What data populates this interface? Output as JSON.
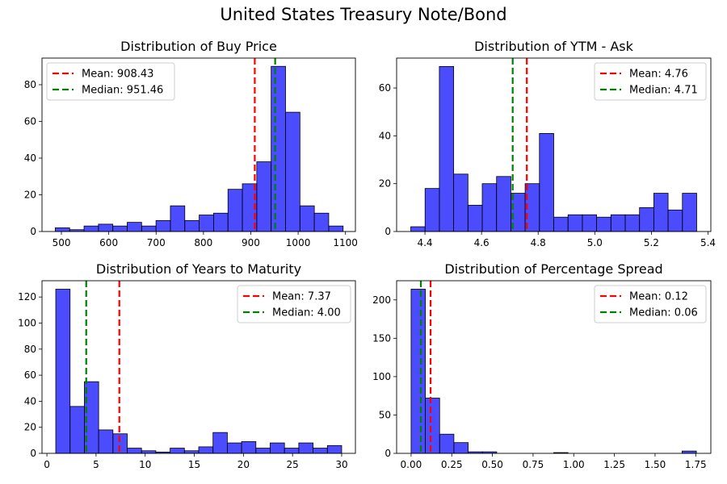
{
  "figure": {
    "title": "United States Treasury Note/Bond"
  },
  "chart_data": [
    {
      "type": "bar",
      "title": "Distribution of Buy Price",
      "xlabel": "",
      "ylabel": "",
      "xlim": [
        459,
        1121
      ],
      "ylim": [
        0,
        94.5
      ],
      "xticks": [
        500,
        600,
        700,
        800,
        900,
        1000,
        1100
      ],
      "yticks": [
        0,
        20,
        40,
        60,
        80
      ],
      "bins": {
        "start": 487,
        "width": 30.4
      },
      "values": [
        2,
        1,
        3,
        4,
        3,
        5,
        3,
        6,
        14,
        6,
        9,
        10,
        23,
        26,
        38,
        90,
        65,
        14,
        10,
        3
      ],
      "bar_color": "#0000ff",
      "bar_alpha": 0.7,
      "edge_color": "#000000",
      "mean": {
        "value": 908.43,
        "label": "Mean: 908.43",
        "color": "#ff0000"
      },
      "median": {
        "value": 951.46,
        "label": "Median: 951.46",
        "color": "#008000"
      },
      "legend": "top-left"
    },
    {
      "type": "bar",
      "title": "Distribution of YTM - Ask",
      "xlabel": "",
      "ylabel": "",
      "xlim": [
        4.3,
        5.41
      ],
      "ylim": [
        0,
        72.5
      ],
      "xticks": [
        4.4,
        4.6,
        4.8,
        5.0,
        5.2,
        5.4
      ],
      "xtick_format": 1,
      "yticks": [
        0,
        20,
        40,
        60
      ],
      "bins": {
        "start": 4.35,
        "width": 0.0505
      },
      "values": [
        2,
        18,
        69,
        24,
        11,
        20,
        23,
        16,
        20,
        41,
        6,
        7,
        7,
        6,
        7,
        7,
        10,
        16,
        9,
        16
      ],
      "bar_color": "#0000ff",
      "bar_alpha": 0.7,
      "edge_color": "#000000",
      "mean": {
        "value": 4.76,
        "label": "Mean: 4.76",
        "color": "#ff0000"
      },
      "median": {
        "value": 4.71,
        "label": "Median: 4.71",
        "color": "#008000"
      },
      "legend": "top-right"
    },
    {
      "type": "bar",
      "title": "Distribution of Years to Maturity",
      "xlabel": "",
      "ylabel": "",
      "xlim": [
        -0.5,
        31.4
      ],
      "ylim": [
        0,
        132.5
      ],
      "xticks": [
        0,
        5,
        10,
        15,
        20,
        25,
        30
      ],
      "yticks": [
        0,
        20,
        40,
        60,
        80,
        100,
        120
      ],
      "bins": {
        "start": 0.9,
        "width": 1.455
      },
      "values": [
        126,
        36,
        55,
        18,
        15,
        4,
        2,
        1,
        4,
        2,
        5,
        16,
        8,
        9,
        4,
        8,
        4,
        8,
        4,
        6
      ],
      "bar_color": "#0000ff",
      "bar_alpha": 0.7,
      "edge_color": "#000000",
      "mean": {
        "value": 7.37,
        "label": "Mean: 7.37",
        "color": "#ff0000"
      },
      "median": {
        "value": 4.0,
        "label": "Median: 4.00",
        "color": "#008000"
      },
      "legend": "top-right"
    },
    {
      "type": "bar",
      "title": "Distribution of Percentage Spread",
      "xlabel": "",
      "ylabel": "",
      "xlim": [
        -0.089,
        1.843
      ],
      "ylim": [
        0,
        225
      ],
      "xticks": [
        0.0,
        0.25,
        0.5,
        0.75,
        1.0,
        1.25,
        1.5,
        1.75
      ],
      "xtick_format": 2,
      "yticks": [
        0,
        50,
        100,
        150,
        200
      ],
      "bins": {
        "start": 0.0,
        "width": 0.0877
      },
      "values": [
        214,
        72,
        25,
        14,
        2,
        2,
        0,
        0,
        0,
        0,
        1,
        0,
        0,
        0,
        0,
        0,
        0,
        0,
        0,
        3
      ],
      "bar_color": "#0000ff",
      "bar_alpha": 0.7,
      "edge_color": "#000000",
      "mean": {
        "value": 0.12,
        "label": "Mean: 0.12",
        "color": "#ff0000"
      },
      "median": {
        "value": 0.06,
        "label": "Median: 0.06",
        "color": "#008000"
      },
      "legend": "top-right"
    }
  ]
}
